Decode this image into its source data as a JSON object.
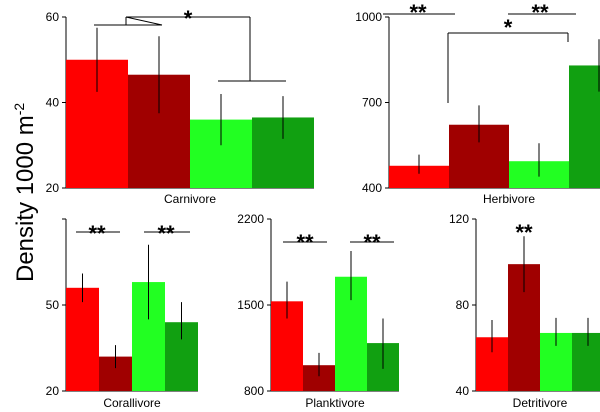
{
  "y_axis_label_main": "Density 1000 m",
  "y_axis_label_sup": "-2",
  "colors": [
    "#ff0000",
    "#a00000",
    "#22ff22",
    "#11a011"
  ],
  "chart_data": [
    {
      "type": "bar",
      "category": "Carnivore",
      "ylim": [
        20,
        60
      ],
      "yticks": [
        "20",
        "40",
        "60"
      ],
      "series": [
        {
          "name": "red",
          "value": 50,
          "err_low": 42.5,
          "err_high": 57.5
        },
        {
          "name": "dark-red",
          "value": 46.5,
          "err_low": 37.5,
          "err_high": 55.5
        },
        {
          "name": "green",
          "value": 36,
          "err_low": 30,
          "err_high": 42
        },
        {
          "name": "dark-green",
          "value": 36.5,
          "err_low": 31.5,
          "err_high": 41.5
        }
      ],
      "significance": [
        {
          "label": "*",
          "groups": [
            [
              0,
              1
            ],
            [
              2,
              3
            ]
          ]
        }
      ]
    },
    {
      "type": "bar",
      "category": "Herbivore",
      "ylim": [
        400,
        1000
      ],
      "yticks": [
        "400",
        "700",
        "1000"
      ],
      "series": [
        {
          "name": "red",
          "value": 478,
          "err_low": 450,
          "err_high": 517
        },
        {
          "name": "dark-red",
          "value": 622,
          "err_low": 560,
          "err_high": 690
        },
        {
          "name": "green",
          "value": 494,
          "err_low": 440,
          "err_high": 557
        },
        {
          "name": "dark-green",
          "value": 830,
          "err_low": 738,
          "err_high": 922
        }
      ],
      "significance": [
        {
          "label": "**",
          "pairs": [
            [
              0,
              1
            ]
          ]
        },
        {
          "label": "**",
          "pairs": [
            [
              2,
              3
            ]
          ]
        },
        {
          "label": "*",
          "pairs": [
            [
              1,
              3
            ]
          ]
        }
      ]
    },
    {
      "type": "bar",
      "category": "Corallivore",
      "ylim": [
        20,
        80
      ],
      "yticks": [
        "20",
        "50",
        ""
      ],
      "series": [
        {
          "name": "red",
          "value": 56,
          "err_low": 51,
          "err_high": 61
        },
        {
          "name": "dark-red",
          "value": 32,
          "err_low": 28,
          "err_high": 36
        },
        {
          "name": "green",
          "value": 58,
          "err_low": 45,
          "err_high": 71
        },
        {
          "name": "dark-green",
          "value": 44,
          "err_low": 38,
          "err_high": 51
        }
      ],
      "significance": [
        {
          "label": "**",
          "pairs": [
            [
              0,
              1
            ]
          ]
        },
        {
          "label": "**",
          "pairs": [
            [
              2,
              3
            ]
          ]
        }
      ]
    },
    {
      "type": "bar",
      "category": "Planktivore",
      "ylim": [
        800,
        2200
      ],
      "yticks": [
        "800",
        "1500",
        "2200"
      ],
      "series": [
        {
          "name": "red",
          "value": 1530,
          "err_low": 1390,
          "err_high": 1690
        },
        {
          "name": "dark-red",
          "value": 1010,
          "err_low": 920,
          "err_high": 1110
        },
        {
          "name": "green",
          "value": 1730,
          "err_low": 1540,
          "err_high": 1940
        },
        {
          "name": "dark-green",
          "value": 1190,
          "err_low": 980,
          "err_high": 1390
        }
      ],
      "significance": [
        {
          "label": "**",
          "pairs": [
            [
              0,
              1
            ]
          ]
        },
        {
          "label": "**",
          "pairs": [
            [
              2,
              3
            ]
          ]
        }
      ]
    },
    {
      "type": "bar",
      "category": "Detritivore",
      "ylim": [
        40,
        120
      ],
      "yticks": [
        "40",
        "80",
        "120"
      ],
      "series": [
        {
          "name": "red",
          "value": 65,
          "err_low": 58,
          "err_high": 73
        },
        {
          "name": "dark-red",
          "value": 99,
          "err_low": 86,
          "err_high": 112
        },
        {
          "name": "green",
          "value": 67,
          "err_low": 61,
          "err_high": 74
        },
        {
          "name": "dark-green",
          "value": 67,
          "err_low": 61,
          "err_high": 74
        }
      ],
      "significance": [
        {
          "label": "**",
          "over": 1
        }
      ]
    }
  ]
}
